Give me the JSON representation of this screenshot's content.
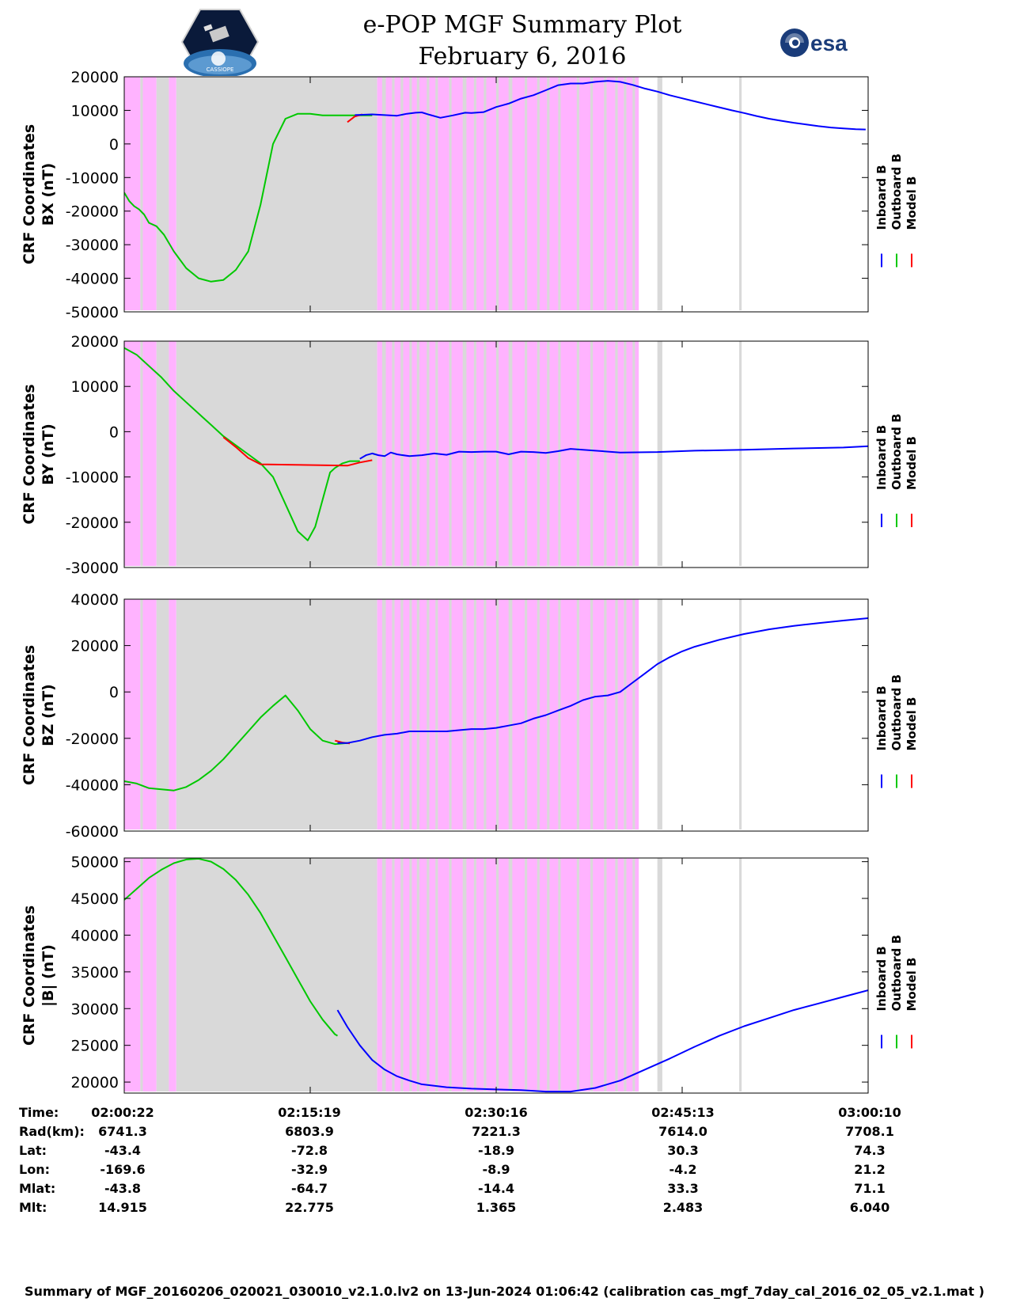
{
  "header": {
    "title_line1": "e-POP MGF Summary Plot",
    "title_line2": "February 6, 2016",
    "logo_left_label": "CASSIOPE",
    "logo_right_label": "esa"
  },
  "colors": {
    "inboard": "#0000ff",
    "outboard": "#00c800",
    "model": "#ff0000",
    "shade_gray": "#d9d9d9",
    "shade_pink": "#ffb3ff"
  },
  "chart_data": [
    {
      "type": "line",
      "ylabel_line1": "CRF Coordinates",
      "ylabel_line2": "BX (nT)",
      "ylim": [
        -50000,
        20000
      ],
      "yticks": [
        20000,
        10000,
        0,
        -10000,
        -20000,
        -30000,
        -40000,
        -50000
      ],
      "ytick_labels": [
        "20000",
        "10000",
        "0",
        "-10000",
        "-20000",
        "-30000",
        "-40000",
        "-50000"
      ],
      "legend": [
        "Inboard B",
        "Outboard B",
        "Model B"
      ],
      "series": [
        {
          "name": "Outboard B",
          "color": "outboard",
          "t": [
            0,
            0.4,
            0.8,
            1.2,
            1.6,
            2.0,
            2.6,
            3.2,
            4.0,
            5.0,
            6.0,
            7.0,
            8.0,
            9.0,
            10.0,
            11.0,
            12.0,
            13.0,
            14.0,
            15.0,
            16.0,
            17.0,
            18.0,
            19.0,
            20.0
          ],
          "values": [
            -14500,
            -17000,
            -18500,
            -19500,
            -21000,
            -23500,
            -24500,
            -27000,
            -32000,
            -37000,
            -40000,
            -41000,
            -40500,
            -37500,
            -32000,
            -18000,
            0,
            7500,
            9000,
            9000,
            8500,
            8500,
            8500,
            8500,
            8500
          ]
        },
        {
          "name": "Inboard B",
          "color": "inboard",
          "t": [
            18.6,
            20,
            21,
            22,
            22.8,
            23.5,
            24,
            24.6,
            25.5,
            26.5,
            27.5,
            28,
            29,
            30,
            31,
            32,
            33,
            34,
            35,
            36,
            37,
            38,
            39,
            40,
            41,
            42,
            43,
            44,
            45,
            46,
            47,
            48,
            49,
            50,
            51,
            52,
            53,
            54,
            55,
            56,
            57,
            58,
            59,
            59.8
          ],
          "values": [
            8600,
            8800,
            8600,
            8400,
            9000,
            9300,
            9400,
            8700,
            7800,
            8500,
            9300,
            9200,
            9500,
            11000,
            12000,
            13500,
            14500,
            16000,
            17500,
            18000,
            18000,
            18500,
            18800,
            18500,
            17600,
            16500,
            15600,
            14500,
            13600,
            12700,
            11800,
            10900,
            10000,
            9200,
            8300,
            7500,
            6900,
            6300,
            5800,
            5300,
            4900,
            4600,
            4400,
            4300
          ]
        },
        {
          "name": "Model B",
          "color": "model",
          "t": [
            18.0,
            18.6,
            19.2
          ],
          "values": [
            6500,
            8200,
            8800
          ]
        }
      ]
    },
    {
      "type": "line",
      "ylabel_line1": "CRF Coordinates",
      "ylabel_line2": "BY (nT)",
      "ylim": [
        -30000,
        20000
      ],
      "yticks": [
        20000,
        10000,
        0,
        -10000,
        -20000,
        -30000
      ],
      "ytick_labels": [
        "20000",
        "10000",
        "0",
        "-10000",
        "-20000",
        "-30000"
      ],
      "legend": [
        "Inboard B",
        "Outboard B",
        "Model B"
      ],
      "series": [
        {
          "name": "Outboard B",
          "color": "outboard",
          "t": [
            0,
            1,
            2,
            3,
            4,
            5,
            6,
            7,
            8,
            9,
            10,
            11,
            12,
            13,
            14,
            14.8,
            15.4,
            16.0,
            16.6,
            17.0,
            17.6,
            18.2,
            19.0
          ],
          "values": [
            18500,
            17000,
            14500,
            12000,
            9000,
            6500,
            4000,
            1500,
            -1000,
            -3000,
            -5000,
            -7000,
            -10000,
            -16000,
            -22000,
            -24000,
            -21000,
            -15000,
            -9000,
            -8000,
            -7000,
            -6500,
            -6500
          ]
        },
        {
          "name": "Inboard B",
          "color": "inboard",
          "t": [
            19,
            19.5,
            20,
            20.5,
            21,
            21.5,
            22,
            23,
            24,
            25,
            26,
            27,
            28,
            29,
            30,
            31,
            32,
            33,
            34,
            35,
            36,
            38,
            40,
            43,
            46,
            50,
            54,
            58,
            60
          ],
          "values": [
            -6000,
            -5200,
            -4800,
            -5200,
            -5400,
            -4600,
            -5000,
            -5400,
            -5200,
            -4800,
            -5100,
            -4400,
            -4500,
            -4400,
            -4400,
            -5000,
            -4400,
            -4500,
            -4700,
            -4300,
            -3800,
            -4200,
            -4600,
            -4500,
            -4200,
            -4000,
            -3700,
            -3500,
            -3200
          ]
        },
        {
          "name": "Model B",
          "color": "model",
          "t": [
            8,
            9,
            10,
            11,
            18,
            19,
            20
          ],
          "values": [
            -1200,
            -3400,
            -5800,
            -7200,
            -7500,
            -6800,
            -6300
          ]
        }
      ]
    },
    {
      "type": "line",
      "ylabel_line1": "CRF Coordinates",
      "ylabel_line2": "BZ (nT)",
      "ylim": [
        -60000,
        40000
      ],
      "yticks": [
        40000,
        20000,
        0,
        -20000,
        -40000,
        -60000
      ],
      "ytick_labels": [
        "40000",
        "20000",
        "0",
        "-20000",
        "-40000",
        "-60000"
      ],
      "legend": [
        "Inboard B",
        "Outboard B",
        "Model B"
      ],
      "series": [
        {
          "name": "Outboard B",
          "color": "outboard",
          "t": [
            0,
            1,
            2,
            3,
            4,
            5,
            6,
            7,
            8,
            9,
            10,
            11,
            12,
            13,
            14,
            15,
            16,
            17,
            18
          ],
          "values": [
            -38500,
            -39500,
            -41500,
            -42000,
            -42500,
            -41000,
            -38000,
            -34000,
            -29000,
            -23000,
            -17000,
            -11000,
            -6000,
            -1500,
            -8000,
            -16000,
            -21000,
            -22500,
            -22000
          ]
        },
        {
          "name": "Inboard B",
          "color": "inboard",
          "t": [
            17.2,
            18,
            19,
            20,
            21,
            22,
            23,
            24,
            25,
            26,
            27,
            28,
            29,
            30,
            31,
            32,
            33,
            34,
            35,
            36,
            37,
            38,
            39,
            40,
            41,
            42,
            43,
            44,
            45,
            46,
            48,
            50,
            52,
            54,
            56,
            58,
            60
          ],
          "values": [
            -22000,
            -22000,
            -21000,
            -19500,
            -18500,
            -18000,
            -17000,
            -17000,
            -17000,
            -17000,
            -16500,
            -16000,
            -16000,
            -15500,
            -14500,
            -13500,
            -11500,
            -10000,
            -8000,
            -6000,
            -3500,
            -2000,
            -1500,
            0,
            4000,
            8000,
            12000,
            15000,
            17500,
            19500,
            22500,
            25000,
            27000,
            28500,
            29700,
            30800,
            31800
          ]
        },
        {
          "name": "Model B",
          "color": "model",
          "t": [
            17,
            17.6,
            18.2
          ],
          "values": [
            -21000,
            -21800,
            -22200
          ]
        }
      ]
    },
    {
      "type": "line",
      "ylabel_line1": "CRF Coordinates",
      "ylabel_line2": "|B| (nT)",
      "ylim": [
        18500,
        50500
      ],
      "yticks": [
        50000,
        45000,
        40000,
        35000,
        30000,
        25000,
        20000
      ],
      "ytick_labels": [
        "50000",
        "45000",
        "40000",
        "35000",
        "30000",
        "25000",
        "20000"
      ],
      "legend": [
        "Inboard B",
        "Outboard B",
        "Model B"
      ],
      "series": [
        {
          "name": "Outboard B",
          "color": "outboard",
          "t": [
            0,
            1,
            2,
            3,
            4,
            5,
            6,
            7,
            8,
            9,
            10,
            11,
            12,
            13,
            14,
            15,
            16,
            17,
            17.2
          ],
          "values": [
            44800,
            46300,
            47800,
            48900,
            49800,
            50300,
            50400,
            50000,
            49000,
            47500,
            45500,
            43000,
            40000,
            37000,
            34000,
            31000,
            28500,
            26500,
            26300
          ]
        },
        {
          "name": "Inboard B",
          "color": "inboard",
          "t": [
            17.2,
            18,
            19,
            20,
            21,
            22,
            23,
            24,
            26,
            28,
            30,
            32,
            34,
            36,
            38,
            40,
            42,
            44,
            46,
            48,
            50,
            52,
            54,
            56,
            58,
            60
          ],
          "values": [
            29800,
            27500,
            25000,
            23000,
            21700,
            20800,
            20200,
            19700,
            19300,
            19100,
            19000,
            18900,
            18700,
            18700,
            19200,
            20200,
            21700,
            23200,
            24800,
            26300,
            27600,
            28700,
            29800,
            30700,
            31600,
            32500
          ]
        },
        {
          "name": "Model B",
          "color": "model",
          "t": [],
          "values": []
        }
      ]
    }
  ],
  "x_axis": {
    "duration_minutes": 60,
    "tick_minutes": [
      0,
      15,
      30,
      45,
      60
    ],
    "shading": [
      {
        "start": 0,
        "end": 1.3,
        "kind": "pink"
      },
      {
        "start": 1.3,
        "end": 1.5,
        "kind": "gray"
      },
      {
        "start": 1.5,
        "end": 2.6,
        "kind": "pink"
      },
      {
        "start": 2.6,
        "end": 3.6,
        "kind": "gray"
      },
      {
        "start": 3.6,
        "end": 4.2,
        "kind": "pink"
      },
      {
        "start": 4.2,
        "end": 20.4,
        "kind": "gray"
      },
      {
        "start": 20.4,
        "end": 41.5,
        "kind": "pink"
      },
      {
        "start": 20.8,
        "end": 21.1,
        "kind": "gray"
      },
      {
        "start": 21.6,
        "end": 21.8,
        "kind": "gray"
      },
      {
        "start": 22.3,
        "end": 22.5,
        "kind": "gray"
      },
      {
        "start": 23.0,
        "end": 23.2,
        "kind": "gray"
      },
      {
        "start": 23.6,
        "end": 23.8,
        "kind": "gray"
      },
      {
        "start": 24.4,
        "end": 24.6,
        "kind": "gray"
      },
      {
        "start": 25.1,
        "end": 25.3,
        "kind": "gray"
      },
      {
        "start": 26.2,
        "end": 26.4,
        "kind": "gray"
      },
      {
        "start": 27.3,
        "end": 27.6,
        "kind": "gray"
      },
      {
        "start": 28.2,
        "end": 28.4,
        "kind": "gray"
      },
      {
        "start": 29.0,
        "end": 29.2,
        "kind": "gray"
      },
      {
        "start": 30.0,
        "end": 30.2,
        "kind": "gray"
      },
      {
        "start": 31.0,
        "end": 31.3,
        "kind": "gray"
      },
      {
        "start": 32.3,
        "end": 32.5,
        "kind": "gray"
      },
      {
        "start": 33.3,
        "end": 33.5,
        "kind": "gray"
      },
      {
        "start": 34.1,
        "end": 34.3,
        "kind": "gray"
      },
      {
        "start": 35.0,
        "end": 35.2,
        "kind": "gray"
      },
      {
        "start": 36.5,
        "end": 36.7,
        "kind": "gray"
      },
      {
        "start": 37.6,
        "end": 37.8,
        "kind": "gray"
      },
      {
        "start": 38.7,
        "end": 38.9,
        "kind": "gray"
      },
      {
        "start": 39.6,
        "end": 39.8,
        "kind": "gray"
      },
      {
        "start": 40.3,
        "end": 40.5,
        "kind": "gray"
      },
      {
        "start": 41.0,
        "end": 41.2,
        "kind": "gray"
      },
      {
        "start": 43.0,
        "end": 43.4,
        "kind": "gray"
      },
      {
        "start": 49.6,
        "end": 49.8,
        "kind": "gray"
      }
    ]
  },
  "info_table": {
    "labels": [
      "Time:",
      "Rad(km):",
      "Lat:",
      "Lon:",
      "Mlat:",
      "Mlt:"
    ],
    "columns": [
      [
        "02:00:22",
        "6741.3",
        "-43.4",
        "-169.6",
        "-43.8",
        "14.915"
      ],
      [
        "02:15:19",
        "6803.9",
        "-72.8",
        "-32.9",
        "-64.7",
        "22.775"
      ],
      [
        "02:30:16",
        "7221.3",
        "-18.9",
        "-8.9",
        "-14.4",
        "1.365"
      ],
      [
        "02:45:13",
        "7614.0",
        "30.3",
        "-4.2",
        "33.3",
        "2.483"
      ],
      [
        "03:00:10",
        "7708.1",
        "74.3",
        "21.2",
        "71.1",
        "6.040"
      ]
    ]
  },
  "footer": "Summary of MGF_20160206_020021_030010_v2.1.0.lv2 on 13-Jun-2024 01:06:42 (calibration cas_mgf_7day_cal_2016_02_05_v2.1.mat )"
}
